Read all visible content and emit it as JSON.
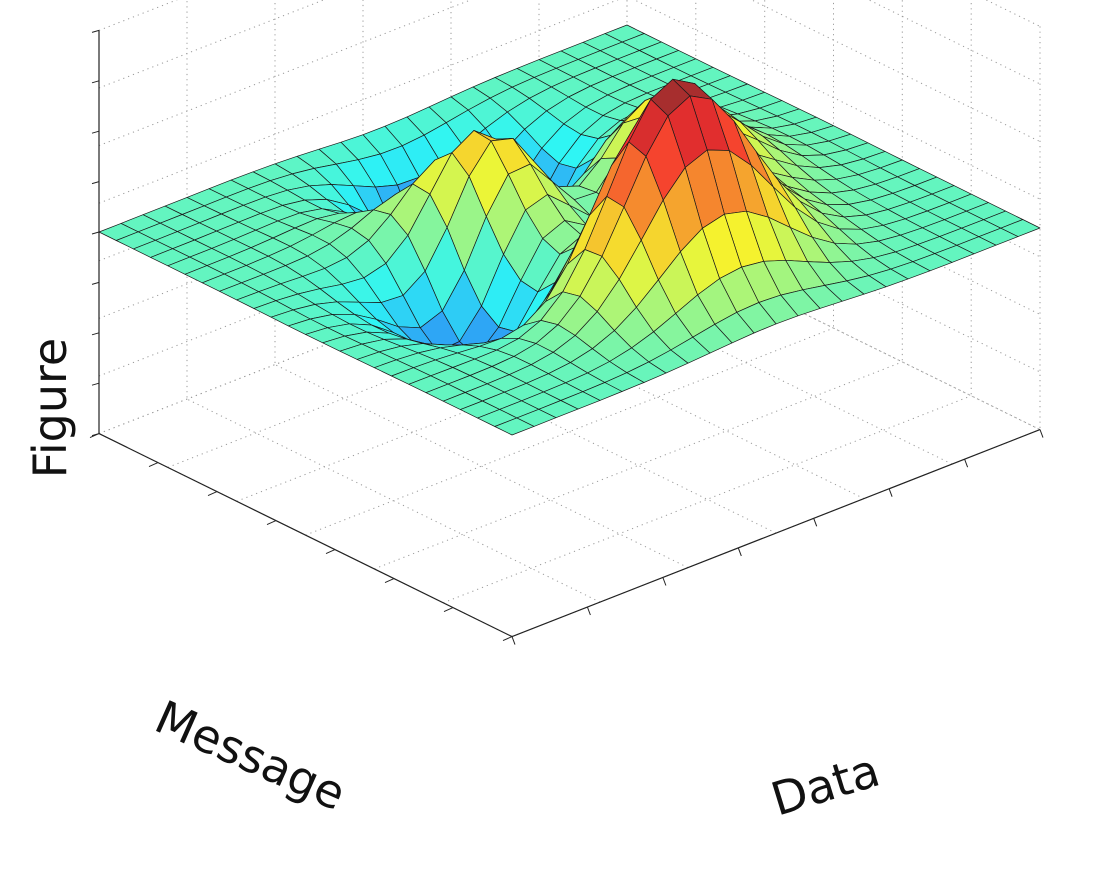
{
  "chart_data": {
    "type": "surface",
    "title": "",
    "xlabel": "Data",
    "ylabel": "Message",
    "zlabel": "Figure",
    "grid": true,
    "tick_labels_visible": false,
    "colormap": "jet",
    "mesh_size": [
      25,
      25
    ],
    "surface_function": "peaks",
    "xlim": [
      -3,
      3
    ],
    "ylim": [
      -3,
      3
    ],
    "zlim": [
      -8,
      8
    ],
    "features": [
      {
        "kind": "peak",
        "z": 8.1
      },
      {
        "kind": "peak",
        "z": 3.8
      },
      {
        "kind": "peak",
        "z": 3.6
      },
      {
        "kind": "trough",
        "z": -6.6
      },
      {
        "kind": "trough",
        "z": -3.0
      }
    ],
    "colors": {
      "grid": "#9a9a9a",
      "axes": "#222222",
      "edges": "#1a1a1a"
    }
  }
}
